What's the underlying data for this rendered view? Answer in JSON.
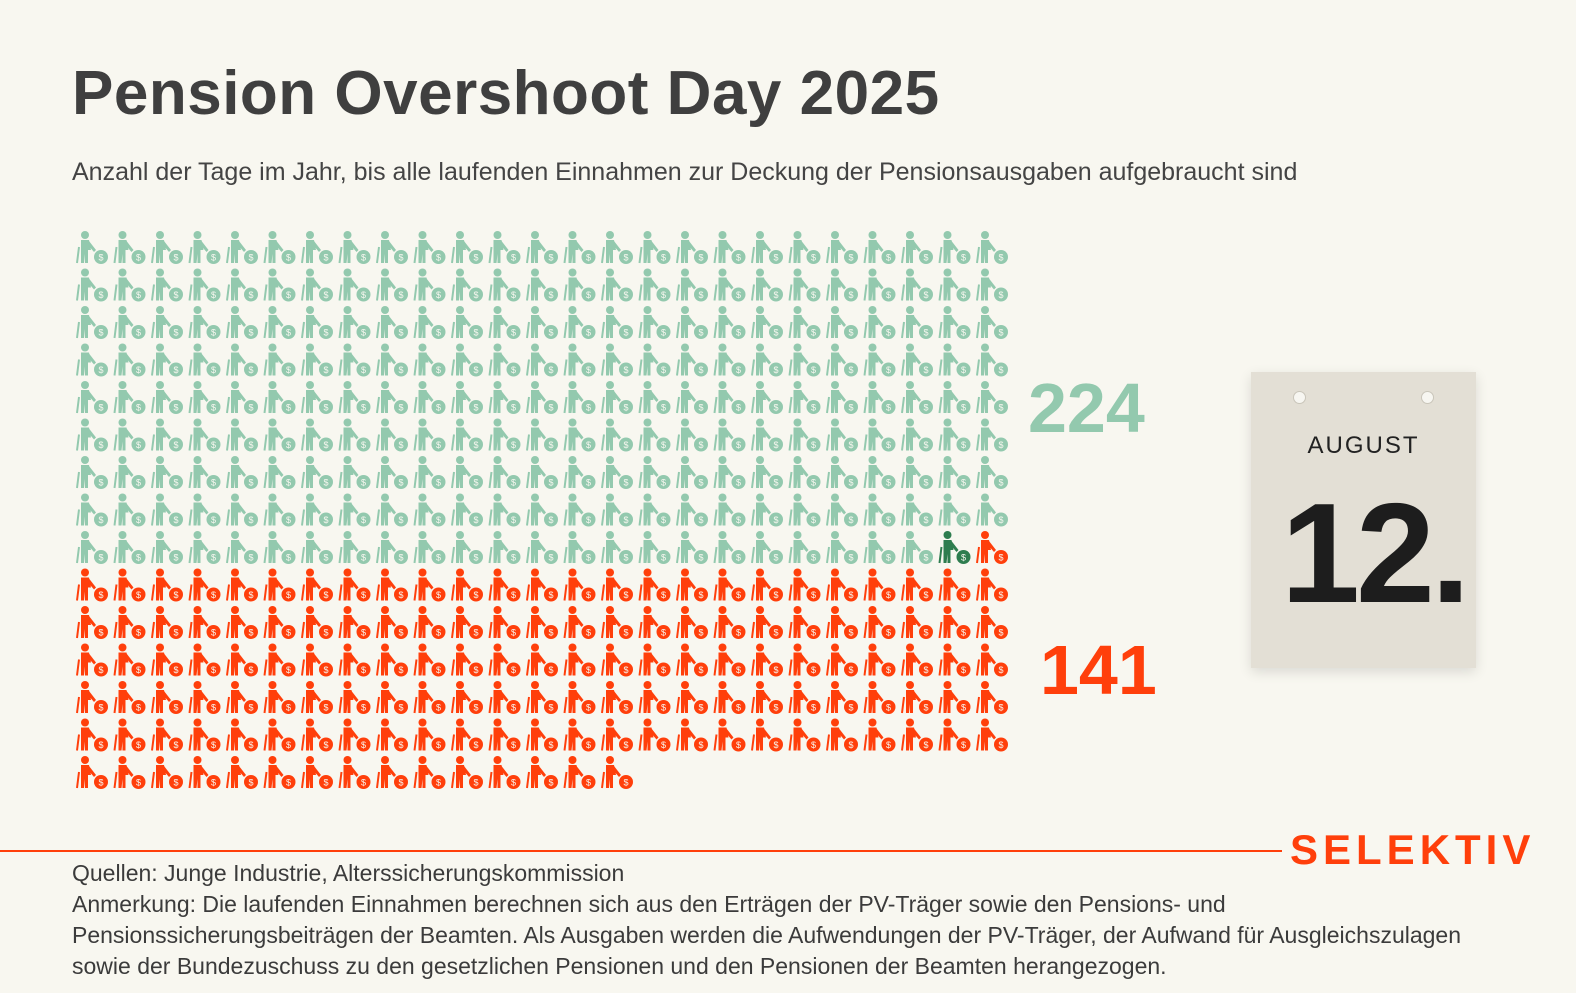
{
  "title": "Pension Overshoot Day 2025",
  "subtitle": "Anzahl der Tage im Jahr, bis alle laufenden Einnahmen zur Deckung der Pensionsausgaben aufgebraucht sind",
  "colors": {
    "covered": "#93c9ae",
    "highlight": "#2e7d4f",
    "uncovered": "#ff3f0b",
    "background": "#f8f7f0"
  },
  "icon": "pensioner-with-coin-icon",
  "chart_data": {
    "type": "waffle",
    "columns": 25,
    "total": 365,
    "categories": [
      "covered",
      "uncovered"
    ],
    "values": [
      224,
      141
    ],
    "labels": [
      "224",
      "141"
    ],
    "highlight_index": 223
  },
  "calendar": {
    "month": "AUGUST",
    "day": "12."
  },
  "brand": "SELEKTIV",
  "footer": {
    "sources": "Quellen: Junge Industrie, Alterssicherungskommission",
    "note": "Anmerkung: Die laufenden Einnahmen berechnen sich aus den Erträgen der PV-Träger sowie den Pensions- und Pensionssicherungsbeiträgen der Beamten. Als Ausgaben werden die Aufwendungen der PV-Träger, der Aufwand für Ausgleichszulagen sowie der Bundezuschuss zu den gesetzlichen Pensionen und den Pensionen der Beamten herangezogen."
  }
}
